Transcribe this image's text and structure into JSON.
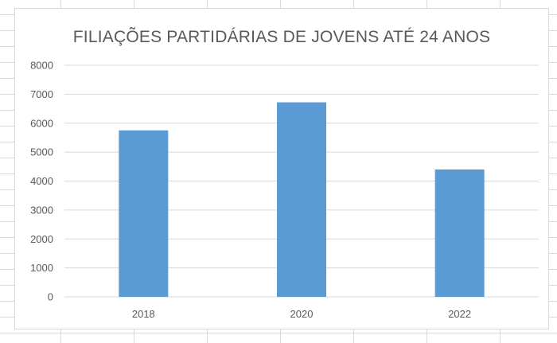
{
  "chart_data": {
    "type": "bar",
    "title": "FILIAÇÕES PARTIDÁRIAS DE JOVENS ATÉ 24 ANOS",
    "categories": [
      "2018",
      "2020",
      "2022"
    ],
    "values": [
      5750,
      6720,
      4400
    ],
    "ylim": [
      0,
      8000
    ],
    "yticks": [
      0,
      1000,
      2000,
      3000,
      4000,
      5000,
      6000,
      7000,
      8000
    ],
    "grid": true,
    "legend": "none",
    "bar_color": "#5b9bd5",
    "grid_color": "#d9d9d9"
  }
}
